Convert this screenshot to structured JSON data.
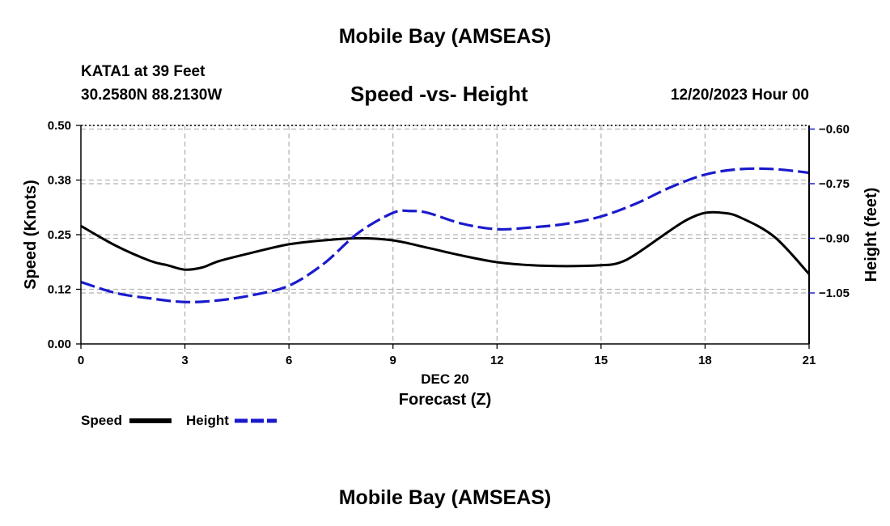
{
  "page": {
    "title_top": "Mobile Bay (AMSEAS)",
    "title_bottom": "Mobile Bay (AMSEAS)"
  },
  "header": {
    "station": "KATA1 at 39 Feet",
    "coords": "30.2580N  88.2130W",
    "chart_title": "Speed -vs- Height",
    "date_hour": "12/20/2023 Hour 00"
  },
  "legend": {
    "speed_label": "Speed",
    "height_label": "Height"
  },
  "colors": {
    "speed": "#000000",
    "height": "#1a1acc",
    "grid": "#b4b4b4"
  },
  "chart_data": {
    "type": "line",
    "title": "Speed -vs- Height",
    "xlabel_date": "DEC 20",
    "xlabel": "Forecast (Z)",
    "ylabel_left": "Speed (Knots)",
    "ylabel_right": "Height (feet)",
    "xlim": [
      0,
      21
    ],
    "xticks": [
      0,
      3,
      6,
      9,
      12,
      15,
      18,
      21
    ],
    "xtick_labels": [
      "0",
      "3",
      "6",
      "9",
      "12",
      "15",
      "18",
      "21"
    ],
    "ylim_left": [
      0,
      0.5
    ],
    "yticks_left": [
      0,
      0.125,
      0.25,
      0.375,
      0.5
    ],
    "ytick_labels_left": [
      "0.00",
      "0.12",
      "0.25",
      "0.38",
      "0.50"
    ],
    "ylim_right": [
      -1.19,
      -0.59
    ],
    "yticks_right": [
      -1.05,
      -0.9,
      -0.75,
      -0.6
    ],
    "ytick_labels_right": [
      "−1.05",
      "−0.90",
      "−0.75",
      "−0.60"
    ],
    "grid": true,
    "series": [
      {
        "name": "Speed",
        "axis": "left",
        "style": "solid",
        "x": [
          0,
          1,
          2,
          2.5,
          3,
          3.5,
          4,
          5,
          6,
          7,
          8,
          9,
          10,
          11,
          12,
          13,
          14,
          15,
          15.5,
          16,
          17,
          17.5,
          18,
          18.5,
          19,
          20,
          21
        ],
        "values": [
          0.27,
          0.225,
          0.19,
          0.18,
          0.17,
          0.175,
          0.19,
          0.21,
          0.228,
          0.237,
          0.242,
          0.237,
          0.22,
          0.202,
          0.187,
          0.18,
          0.178,
          0.18,
          0.185,
          0.205,
          0.26,
          0.285,
          0.3,
          0.3,
          0.29,
          0.245,
          0.16
        ]
      },
      {
        "name": "Height",
        "axis": "right",
        "style": "dashed",
        "x": [
          0,
          1,
          2,
          3,
          4,
          5,
          6,
          7,
          8,
          9,
          9.5,
          10,
          11,
          12,
          13,
          14,
          15,
          16,
          17,
          18,
          19,
          20,
          21
        ],
        "values": [
          -1.02,
          -1.05,
          -1.065,
          -1.075,
          -1.07,
          -1.055,
          -1.03,
          -0.97,
          -0.885,
          -0.83,
          -0.825,
          -0.83,
          -0.86,
          -0.875,
          -0.87,
          -0.86,
          -0.84,
          -0.805,
          -0.76,
          -0.725,
          -0.71,
          -0.71,
          -0.72
        ]
      }
    ]
  }
}
